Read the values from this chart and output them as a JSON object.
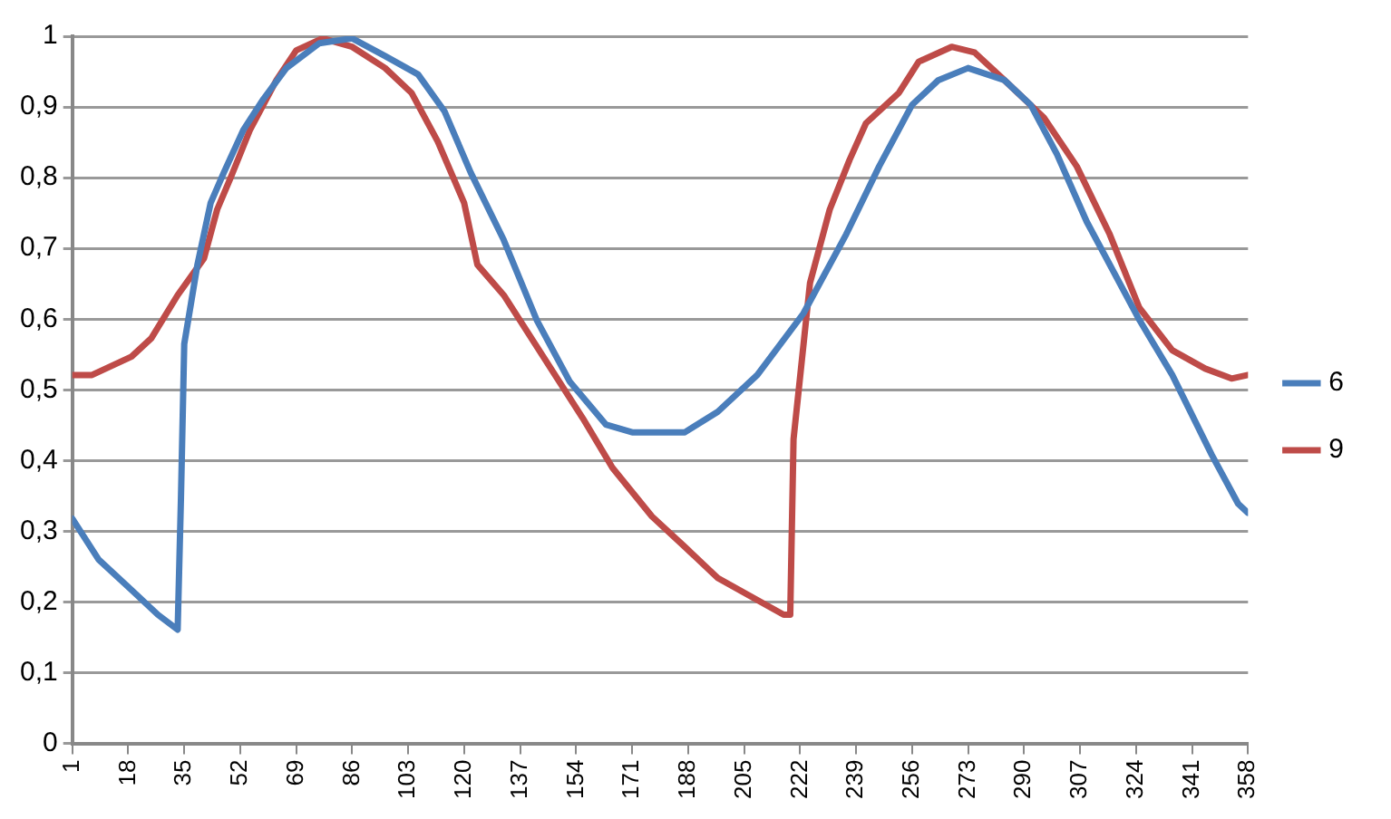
{
  "chart_data": {
    "type": "line",
    "xlim": [
      1,
      358
    ],
    "xticks": [
      1,
      18,
      35,
      52,
      69,
      86,
      103,
      120,
      137,
      154,
      171,
      188,
      205,
      222,
      239,
      256,
      273,
      290,
      307,
      324,
      341,
      358
    ],
    "ylim": [
      0,
      1
    ],
    "yticks": [
      0,
      {
        "value": 0.1,
        "label": "0,1"
      },
      {
        "value": 0.2,
        "label": "0,2"
      },
      {
        "value": 0.3,
        "label": "0,3"
      },
      {
        "value": 0.4,
        "label": "0,4"
      },
      {
        "value": 0.5,
        "label": "0,5"
      },
      {
        "value": 0.6,
        "label": "0,6"
      },
      {
        "value": 0.7,
        "label": "0,7"
      },
      {
        "value": 0.8,
        "label": "0,8"
      },
      {
        "value": 0.9,
        "label": "0,9"
      },
      1
    ],
    "grid": "y",
    "legend": "right",
    "marker": "none",
    "line_style": "solid",
    "series": [
      {
        "name": "6",
        "color": "#4a7ebb",
        "x": [
          1,
          9,
          19,
          27,
          33,
          34,
          35,
          39,
          43,
          47,
          53,
          59,
          66,
          76,
          86,
          96,
          106,
          114,
          122,
          132,
          142,
          152,
          163,
          171,
          183,
          187,
          197,
          209,
          223,
          236,
          246,
          256,
          264,
          273,
          284,
          292,
          300,
          309,
          315,
          325,
          335,
          347,
          355,
          358
        ],
        "values": [
          0.318,
          0.26,
          0.217,
          0.182,
          0.161,
          0.347,
          0.565,
          0.677,
          0.764,
          0.807,
          0.868,
          0.911,
          0.955,
          0.99,
          0.997,
          0.972,
          0.946,
          0.894,
          0.807,
          0.712,
          0.599,
          0.512,
          0.451,
          0.44,
          0.44,
          0.44,
          0.469,
          0.521,
          0.608,
          0.72,
          0.816,
          0.903,
          0.938,
          0.955,
          0.938,
          0.903,
          0.833,
          0.738,
          0.686,
          0.599,
          0.521,
          0.408,
          0.339,
          0.326
        ]
      },
      {
        "name": "9",
        "color": "#be4b48",
        "x": [
          1,
          7,
          19,
          25,
          33,
          41,
          45,
          49,
          55,
          63,
          69,
          77,
          86,
          96,
          104,
          112,
          120,
          124,
          132,
          144,
          156,
          165,
          177,
          187,
          197,
          207,
          217,
          219,
          220,
          225,
          231,
          237,
          242,
          252,
          258,
          268,
          275,
          284,
          296,
          306,
          316,
          325,
          335,
          345,
          353,
          358
        ],
        "values": [
          0.521,
          0.521,
          0.547,
          0.573,
          0.634,
          0.686,
          0.755,
          0.799,
          0.868,
          0.938,
          0.98,
          0.997,
          0.985,
          0.955,
          0.92,
          0.851,
          0.764,
          0.677,
          0.634,
          0.547,
          0.46,
          0.39,
          0.321,
          0.278,
          0.234,
          0.208,
          0.182,
          0.182,
          0.43,
          0.651,
          0.755,
          0.825,
          0.877,
          0.92,
          0.964,
          0.985,
          0.977,
          0.938,
          0.885,
          0.816,
          0.72,
          0.616,
          0.556,
          0.53,
          0.516,
          0.521
        ]
      }
    ]
  }
}
